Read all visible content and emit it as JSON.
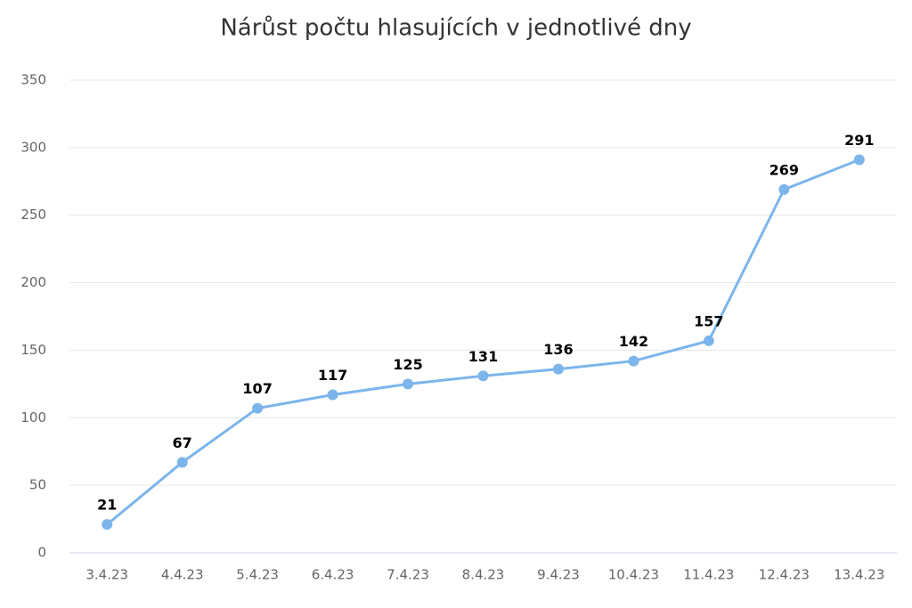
{
  "chart_data": {
    "type": "line",
    "title": "Nárůst počtu hlasujících v jednotlivé dny",
    "categories": [
      "3.4.23",
      "4.4.23",
      "5.4.23",
      "6.4.23",
      "7.4.23",
      "8.4.23",
      "9.4.23",
      "10.4.23",
      "11.4.23",
      "12.4.23",
      "13.4.23"
    ],
    "values": [
      21,
      67,
      107,
      117,
      125,
      131,
      136,
      142,
      157,
      269,
      291
    ],
    "color": "#7cb5ec",
    "ylim": [
      0,
      350
    ],
    "yticks": [
      0,
      50,
      100,
      150,
      200,
      250,
      300,
      350
    ],
    "grid": true
  }
}
